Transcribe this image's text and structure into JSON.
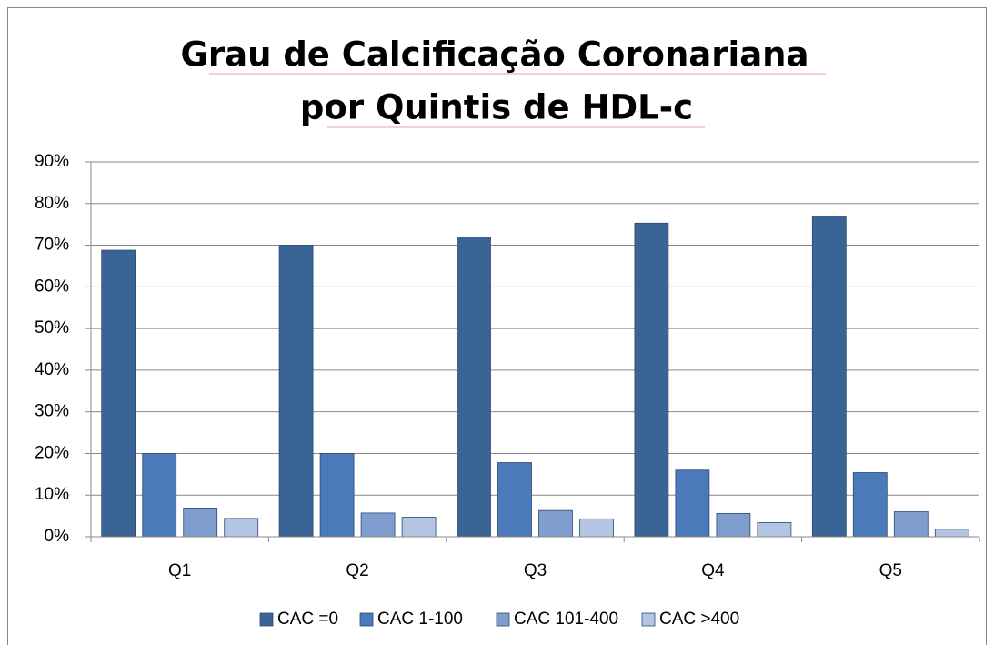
{
  "chart_data": {
    "type": "bar",
    "title": [
      "Grau de Calcificação Coronariana",
      "por Quintis de HDL-c"
    ],
    "categories": [
      "Q1",
      "Q2",
      "Q3",
      "Q4",
      "Q5"
    ],
    "series": [
      {
        "name": "CAC =0",
        "color": "#3b6496",
        "values": [
          68.8,
          70,
          72,
          75.3,
          77
        ]
      },
      {
        "name": "CAC 1-100",
        "color": "#4a7ab9",
        "values": [
          20,
          20,
          17.8,
          16,
          15.4
        ]
      },
      {
        "name": "CAC 101-400",
        "color": "#7f9dcd",
        "values": [
          6.9,
          5.7,
          6.3,
          5.6,
          6
        ]
      },
      {
        "name": "CAC >400",
        "color": "#b4c5e3",
        "values": [
          4.4,
          4.7,
          4.3,
          3.4,
          1.8
        ]
      }
    ],
    "ylim": [
      0,
      90
    ],
    "yticks": [
      {
        "value": 0,
        "label": "0%"
      },
      {
        "value": 10,
        "label": "10%"
      },
      {
        "value": 20,
        "label": "20%"
      },
      {
        "value": 30,
        "label": "30%"
      },
      {
        "value": 40,
        "label": "40%"
      },
      {
        "value": 50,
        "label": "50%"
      },
      {
        "value": 60,
        "label": "60%"
      },
      {
        "value": 70,
        "label": "70%"
      },
      {
        "value": 80,
        "label": "80%"
      },
      {
        "value": 90,
        "label": "90%"
      }
    ],
    "grid": true,
    "legend": "bottom"
  }
}
